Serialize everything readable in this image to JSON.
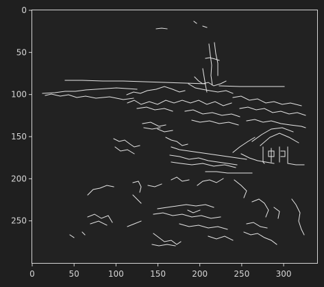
{
  "figure": {
    "image": "canny-edge-map-of-coastal-village",
    "background_color": "#1f1f1f",
    "image_color": "#222222",
    "edge_color": "#e8e8e8",
    "axis_color": "#d6d6d6"
  },
  "axes": {
    "x_range": [
      0,
      340
    ],
    "y_range": [
      0,
      300
    ],
    "y_inverted": true,
    "x_ticks": [
      {
        "value": 0,
        "label": "0"
      },
      {
        "value": 50,
        "label": "50"
      },
      {
        "value": 100,
        "label": "100"
      },
      {
        "value": 150,
        "label": "150"
      },
      {
        "value": 200,
        "label": "200"
      },
      {
        "value": 250,
        "label": "250"
      },
      {
        "value": 300,
        "label": "300"
      }
    ],
    "y_ticks": [
      {
        "value": 0,
        "label": "0"
      },
      {
        "value": 50,
        "label": "50"
      },
      {
        "value": 100,
        "label": "100"
      },
      {
        "value": 150,
        "label": "150"
      },
      {
        "value": 200,
        "label": "200"
      },
      {
        "value": 250,
        "label": "250"
      }
    ]
  }
}
